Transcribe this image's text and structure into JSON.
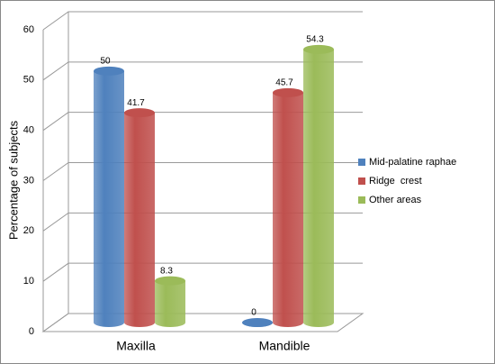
{
  "chart_data": {
    "type": "bar3d",
    "y_label": "Percentage of subjects",
    "categories": [
      "Maxilla",
      "Mandible"
    ],
    "series": [
      {
        "name": "Mid-palatine raphae",
        "color": "#4f81bd",
        "values": [
          50,
          0
        ]
      },
      {
        "name": "Ridge  crest",
        "color": "#c0504d",
        "values": [
          41.7,
          45.7
        ]
      },
      {
        "name": "Other areas",
        "color": "#9bbb59",
        "values": [
          8.3,
          54.3
        ]
      }
    ],
    "ylim": [
      0,
      60
    ],
    "yticks": [
      0,
      10,
      20,
      30,
      40,
      50,
      60
    ],
    "grid": true,
    "legend": "right"
  }
}
